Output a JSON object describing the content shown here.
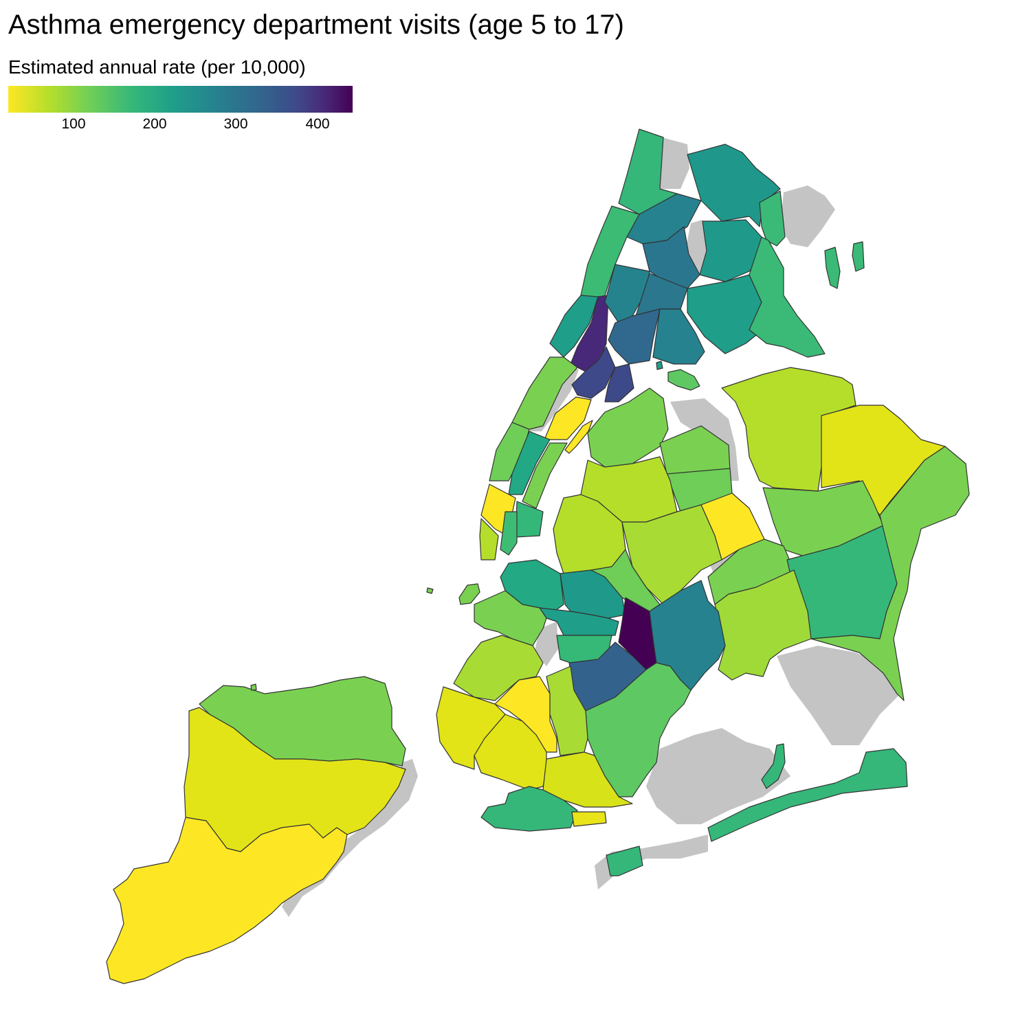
{
  "title": "Asthma emergency department visits (age 5 to 17)",
  "legend": {
    "title": "Estimated annual rate (per 10,000)",
    "ticks": [
      "100",
      "200",
      "300",
      "400"
    ]
  },
  "colors": {
    "missing": "#c4c4c4",
    "scale": [
      "#fde725",
      "#b5de2b",
      "#6ece58",
      "#35b779",
      "#1f9e89",
      "#26828e",
      "#31688e",
      "#3e4989",
      "#482878",
      "#440154"
    ]
  }
}
